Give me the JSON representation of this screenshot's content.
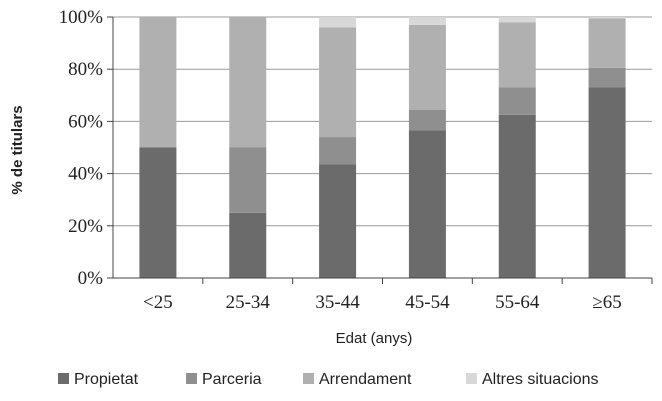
{
  "chart_data": {
    "type": "bar",
    "stacked": true,
    "categories": [
      "<25",
      "25-34",
      "35-44",
      "45-54",
      "55-64",
      "≥65"
    ],
    "series": [
      {
        "name": "Propietat",
        "values": [
          50,
          25,
          43.5,
          56.5,
          62.5,
          73
        ],
        "color": "#6b6b6b"
      },
      {
        "name": "Parceria",
        "values": [
          0,
          25,
          10.5,
          8,
          10.5,
          7.5
        ],
        "color": "#8f8f8f"
      },
      {
        "name": "Arrendament",
        "values": [
          50,
          50,
          42,
          32.5,
          25,
          19
        ],
        "color": "#b0b0b0"
      },
      {
        "name": "Altres situacions",
        "values": [
          0,
          0,
          4,
          3,
          2,
          0.5
        ],
        "color": "#d8d8d8"
      }
    ],
    "xlabel": "Edat (anys)",
    "ylabel": "% de titulars",
    "ylim": [
      0,
      100
    ],
    "yticks": [
      "0%",
      "20%",
      "40%",
      "60%",
      "80%",
      "100%"
    ],
    "grid": true,
    "legend_position": "bottom"
  }
}
